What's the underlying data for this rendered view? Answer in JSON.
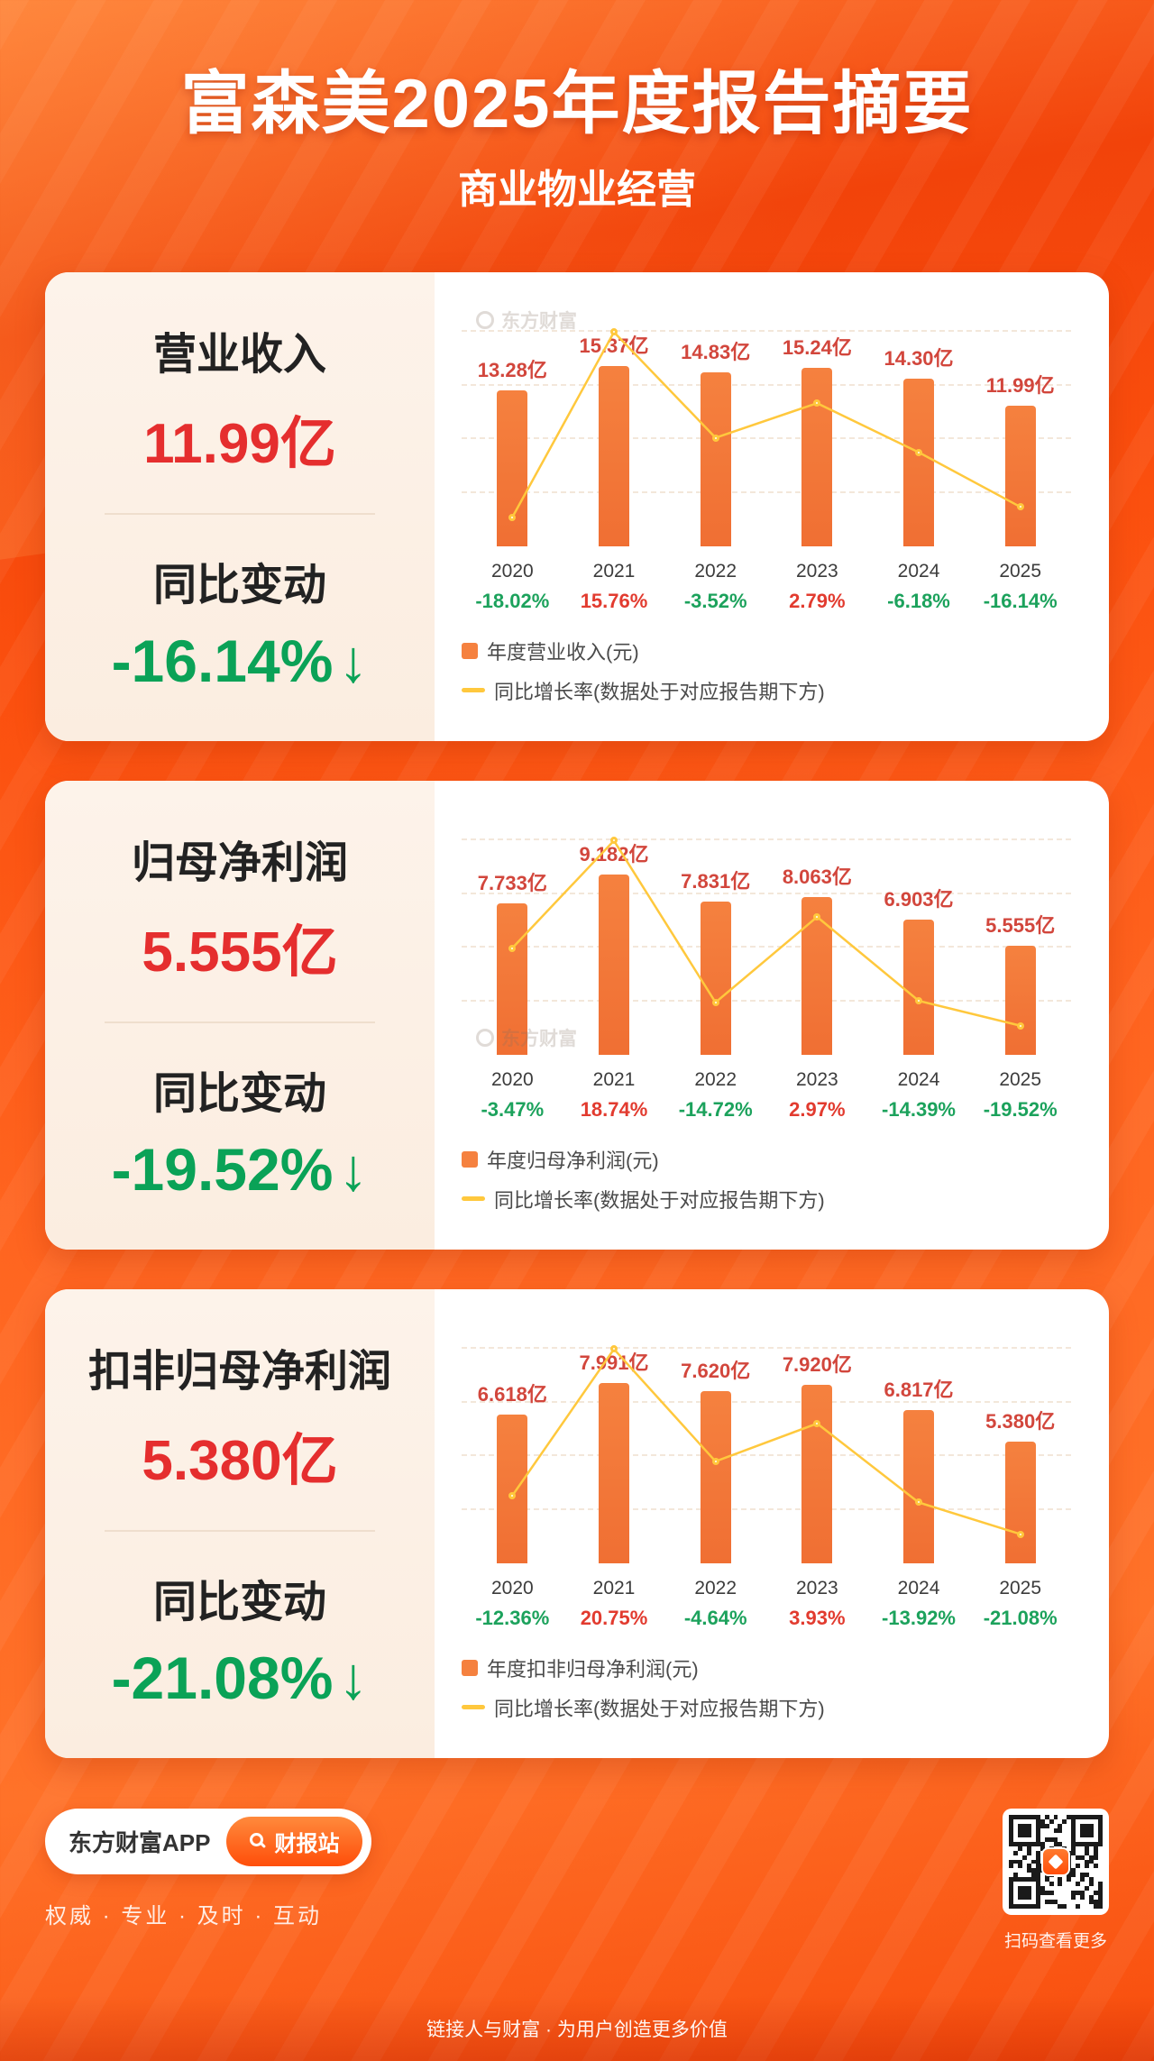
{
  "colors": {
    "bar": "#F5813F",
    "line": "#FFC83D",
    "bar_label": "#D2463C",
    "growth_red": "#E23B2F",
    "growth_green": "#1CA25C",
    "metric_red": "#E52E2E",
    "change_green": "#0AA257",
    "accent_orange": "#FF4E0A"
  },
  "header": {
    "title": "富森美2025年度报告摘要",
    "subtitle": "商业物业经营"
  },
  "watermark": "东方财富",
  "cards": [
    {
      "metric_label": "营业收入",
      "metric_value": "11.99亿",
      "change_label": "同比变动",
      "change_value": "-16.14%",
      "arrow": "↓"
    },
    {
      "metric_label": "归母净利润",
      "metric_value": "5.555亿",
      "change_label": "同比变动",
      "change_value": "-19.52%",
      "arrow": "↓"
    },
    {
      "metric_label": "扣非归母净利润",
      "metric_value": "5.380亿",
      "change_label": "同比变动",
      "change_value": "-21.08%",
      "arrow": "↓"
    }
  ],
  "chart_data": [
    {
      "type": "bar",
      "title": "营业收入",
      "categories": [
        "2020",
        "2021",
        "2022",
        "2023",
        "2024",
        "2025"
      ],
      "ylim": [
        0,
        16
      ],
      "grid": "dashed-horizontal",
      "legend_position": "bottom-left",
      "series": [
        {
          "name": "年度营业收入(元)",
          "type": "bar",
          "unit": "亿",
          "values": [
            13.28,
            15.37,
            14.83,
            15.24,
            14.3,
            11.99
          ],
          "labels": [
            "13.28亿",
            "15.37亿",
            "14.83亿",
            "15.24亿",
            "14.30亿",
            "11.99亿"
          ]
        },
        {
          "name": "同比增长率(数据处于对应报告期下方)",
          "type": "line",
          "unit": "%",
          "values": [
            -18.02,
            15.76,
            -3.52,
            2.79,
            -6.18,
            -16.14
          ],
          "labels": [
            "-18.02%",
            "15.76%",
            "-3.52%",
            "2.79%",
            "-6.18%",
            "-16.14%"
          ],
          "label_colors": [
            "green",
            "red",
            "green",
            "red",
            "green",
            "green"
          ]
        }
      ]
    },
    {
      "type": "bar",
      "title": "归母净利润",
      "categories": [
        "2020",
        "2021",
        "2022",
        "2023",
        "2024",
        "2025"
      ],
      "ylim": [
        0,
        10
      ],
      "grid": "dashed-horizontal",
      "legend_position": "bottom-left",
      "series": [
        {
          "name": "年度归母净利润(元)",
          "type": "bar",
          "unit": "亿",
          "values": [
            7.733,
            9.182,
            7.831,
            8.063,
            6.903,
            5.555
          ],
          "labels": [
            "7.733亿",
            "9.182亿",
            "7.831亿",
            "8.063亿",
            "6.903亿",
            "5.555亿"
          ]
        },
        {
          "name": "同比增长率(数据处于对应报告期下方)",
          "type": "line",
          "unit": "%",
          "values": [
            -3.47,
            18.74,
            -14.72,
            2.97,
            -14.39,
            -19.52
          ],
          "labels": [
            "-3.47%",
            "18.74%",
            "-14.72%",
            "2.97%",
            "-14.39%",
            "-19.52%"
          ],
          "label_colors": [
            "green",
            "red",
            "green",
            "red",
            "green",
            "green"
          ]
        }
      ]
    },
    {
      "type": "bar",
      "title": "扣非归母净利润",
      "categories": [
        "2020",
        "2021",
        "2022",
        "2023",
        "2024",
        "2025"
      ],
      "ylim": [
        0,
        9
      ],
      "grid": "dashed-horizontal",
      "legend_position": "bottom-left",
      "series": [
        {
          "name": "年度扣非归母净利润(元)",
          "type": "bar",
          "unit": "亿",
          "values": [
            6.618,
            7.991,
            7.62,
            7.92,
            6.817,
            5.38
          ],
          "labels": [
            "6.618亿",
            "7.991亿",
            "7.620亿",
            "7.920亿",
            "6.817亿",
            "5.380亿"
          ]
        },
        {
          "name": "同比增长率(数据处于对应报告期下方)",
          "type": "line",
          "unit": "%",
          "values": [
            -12.36,
            20.75,
            -4.64,
            3.93,
            -13.92,
            -21.08
          ],
          "labels": [
            "-12.36%",
            "20.75%",
            "-4.64%",
            "3.93%",
            "-13.92%",
            "-21.08%"
          ],
          "label_colors": [
            "green",
            "red",
            "green",
            "red",
            "green",
            "green"
          ]
        }
      ]
    }
  ],
  "footer": {
    "app_label": "东方财富APP",
    "cta_label": "财报站",
    "tagline": "权威 · 专业 · 及时 · 互动",
    "qr_caption": "扫码查看更多",
    "bottom_note": "链接人与财富 · 为用户创造更多价值"
  }
}
